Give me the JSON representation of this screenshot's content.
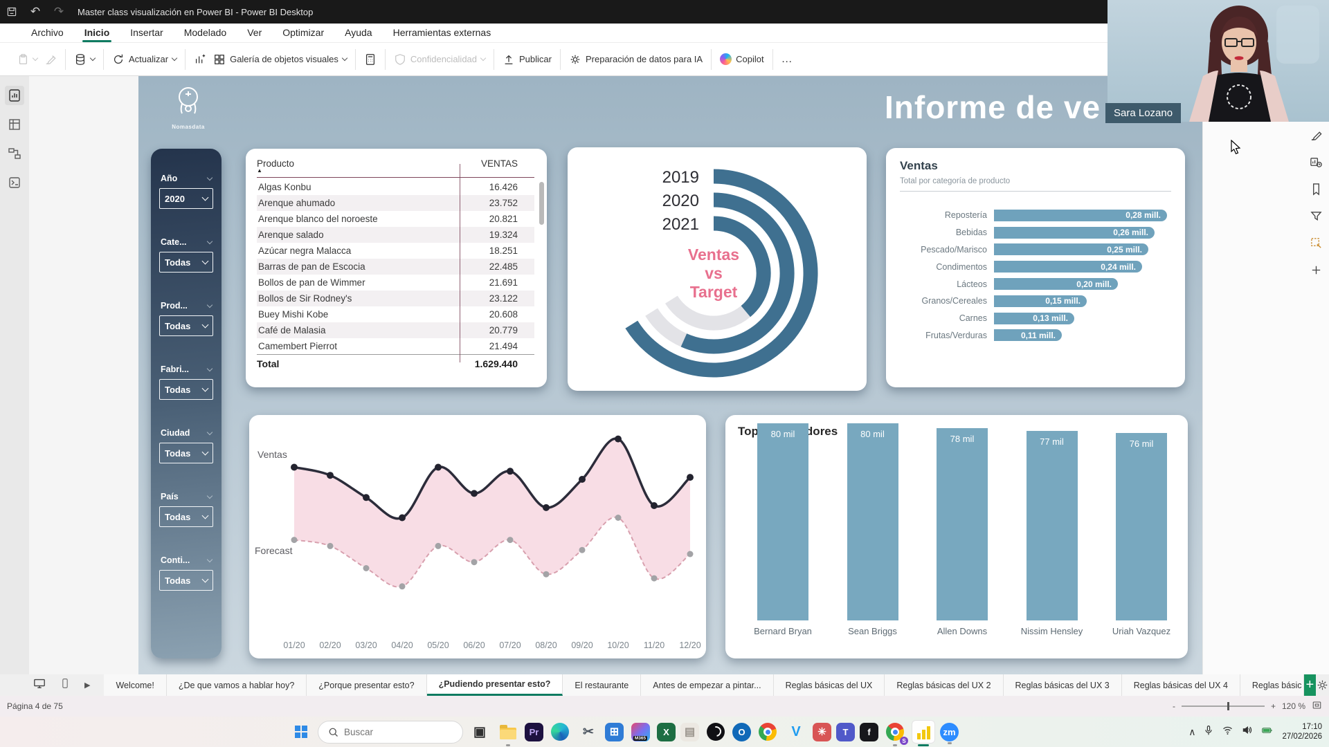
{
  "window": {
    "title": "Master class visualización en Power BI - Power BI Desktop",
    "titlebar_buttons": [
      {
        "name": "save"
      },
      {
        "name": "undo"
      },
      {
        "name": "redo",
        "disabled": true
      }
    ]
  },
  "menu": {
    "items": [
      {
        "label": "Archivo"
      },
      {
        "label": "Inicio",
        "active": true
      },
      {
        "label": "Insertar"
      },
      {
        "label": "Modelado"
      },
      {
        "label": "Ver"
      },
      {
        "label": "Optimizar"
      },
      {
        "label": "Ayuda"
      },
      {
        "label": "Herramientas externas"
      }
    ]
  },
  "toolbar": {
    "groups": [
      {
        "items": [
          {
            "icon": "clipboard",
            "chevron": true,
            "disabled": true
          },
          {
            "icon": "format-painter",
            "disabled": true
          }
        ]
      },
      {
        "items": [
          {
            "icon": "database",
            "chevron": true
          }
        ]
      },
      {
        "items": [
          {
            "icon": "refresh",
            "label": "Actualizar",
            "chevron": true
          }
        ]
      },
      {
        "items": [
          {
            "icon": "new-visual"
          },
          {
            "icon": "visual-gallery",
            "label": "Galería de objetos visuales",
            "chevron": true
          }
        ]
      },
      {
        "items": [
          {
            "icon": "calculator"
          }
        ]
      },
      {
        "items": [
          {
            "icon": "sensitivity",
            "label": "Confidencialidad",
            "chevron": true,
            "disabled": true
          }
        ]
      },
      {
        "items": [
          {
            "icon": "publish",
            "label": "Publicar"
          }
        ]
      },
      {
        "items": [
          {
            "icon": "data-prep",
            "label": "Preparación de datos para IA"
          }
        ]
      },
      {
        "items": [
          {
            "icon": "copilot",
            "label": "Copilot"
          }
        ]
      },
      {
        "items": [
          {
            "icon": "more",
            "label": "…"
          }
        ]
      }
    ]
  },
  "left_rail": {
    "items": [
      {
        "name": "report-view",
        "active": true
      },
      {
        "name": "data-view"
      },
      {
        "name": "model-view"
      },
      {
        "name": "dax-query-view"
      }
    ]
  },
  "right_rail": {
    "items": [
      {
        "name": "format-visual"
      },
      {
        "name": "performance-analyzer"
      },
      {
        "name": "bookmarks"
      },
      {
        "name": "sync-slicers"
      },
      {
        "name": "selection",
        "accent": true
      },
      {
        "name": "add-visual"
      }
    ]
  },
  "report": {
    "logo_text": "Nomasdata",
    "title": "Informe de ve",
    "filters": [
      {
        "label": "Año",
        "value": "2020"
      },
      {
        "label": "Cate...",
        "value": "Todas"
      },
      {
        "label": "Prod...",
        "value": "Todas"
      },
      {
        "label": "Fabri...",
        "value": "Todas"
      },
      {
        "label": "Ciudad",
        "value": "Todas"
      },
      {
        "label": "País",
        "value": "Todas"
      },
      {
        "label": "Conti...",
        "value": "Todas"
      }
    ],
    "table": {
      "columns": [
        "Producto",
        "VENTAS"
      ],
      "rows": [
        [
          "Algas Konbu",
          "16.426"
        ],
        [
          "Arenque ahumado",
          "23.752"
        ],
        [
          "Arenque blanco del noroeste",
          "20.821"
        ],
        [
          "Arenque salado",
          "19.324"
        ],
        [
          "Azúcar negra Malacca",
          "18.251"
        ],
        [
          "Barras de pan de Escocia",
          "22.485"
        ],
        [
          "Bollos de pan de Wimmer",
          "21.691"
        ],
        [
          "Bollos de Sir Rodney's",
          "23.122"
        ],
        [
          "Buey Mishi Kobe",
          "20.608"
        ],
        [
          "Café de Malasia",
          "20.779"
        ],
        [
          "Camembert Pierrot",
          "21.494"
        ]
      ],
      "total_label": "Total",
      "total_value": "1.629.440"
    }
  },
  "chart_data": [
    {
      "type": "radial-bar",
      "title": "Ventas vs Target",
      "categories": [
        "2019",
        "2020",
        "2021"
      ],
      "progress_deg": [
        238,
        204,
        140
      ],
      "track_deg": 238,
      "center_label_lines": [
        "Ventas",
        "vs",
        "Target"
      ]
    },
    {
      "type": "bar",
      "orientation": "horizontal",
      "title": "Ventas",
      "subtitle": "Total por categoría de producto",
      "categories": [
        "Repostería",
        "Bebidas",
        "Pescado/Marisco",
        "Condimentos",
        "Lácteos",
        "Granos/Cereales",
        "Carnes",
        "Frutas/Verduras"
      ],
      "values": [
        0.28,
        0.26,
        0.25,
        0.24,
        0.2,
        0.15,
        0.13,
        0.11
      ],
      "labels": [
        "0,28 mill.",
        "0,26 mill.",
        "0,25 mill.",
        "0,24 mill.",
        "0,20 mill.",
        "0,15 mill.",
        "0,13 mill.",
        "0,11 mill."
      ],
      "xlim": [
        0,
        0.28
      ]
    },
    {
      "type": "line",
      "x": [
        "01/20",
        "02/20",
        "03/20",
        "04/20",
        "05/20",
        "06/20",
        "07/20",
        "08/20",
        "09/20",
        "10/20",
        "11/20",
        "12/20"
      ],
      "series": [
        {
          "name": "Ventas",
          "style": "solid",
          "values": [
            81,
            77,
            66,
            56,
            81,
            68,
            79,
            61,
            75,
            95,
            62,
            76
          ]
        },
        {
          "name": "Forecast",
          "style": "dashed",
          "values": [
            45,
            42,
            31,
            22,
            42,
            34,
            45,
            28,
            40,
            56,
            26,
            38
          ]
        }
      ],
      "area_between": true,
      "ylim": [
        0,
        100
      ]
    },
    {
      "type": "bar",
      "orientation": "vertical",
      "title": "Top 5 vendedores",
      "categories": [
        "Bernard Bryan",
        "Sean Briggs",
        "Allen Downs",
        "Nissim Hensley",
        "Uriah Vazquez"
      ],
      "values": [
        80,
        80,
        78,
        77,
        76
      ],
      "labels": [
        "80 mil",
        "80 mil",
        "78 mil",
        "77 mil",
        "76 mil"
      ],
      "ylim": [
        0,
        85
      ]
    }
  ],
  "pages_bar": {
    "view_icons": [
      "desktop-view",
      "mobile-view"
    ],
    "next_page_glyph": "▶",
    "tabs": [
      {
        "label": "Welcome!"
      },
      {
        "label": "¿De que vamos a hablar hoy?"
      },
      {
        "label": "¿Porque presentar esto?"
      },
      {
        "label": "¿Pudiendo presentar esto?",
        "active": true
      },
      {
        "label": "El restaurante"
      },
      {
        "label": "Antes de empezar a pintar..."
      },
      {
        "label": "Reglas básicas del UX"
      },
      {
        "label": "Reglas básicas del UX 2"
      },
      {
        "label": "Reglas básicas del UX 3"
      },
      {
        "label": "Reglas básicas del UX 4"
      },
      {
        "label": "Reglas básic",
        "clipped": true
      }
    ],
    "add_label": "+"
  },
  "status_bar": {
    "page_indicator": "Página 4 de 75",
    "zoom_level": "120 %",
    "zoom_minus": "-",
    "zoom_plus": "+"
  },
  "webcam": {
    "name_label": "Sara Lozano"
  },
  "taskbar": {
    "search_placeholder": "Buscar",
    "icons": [
      {
        "name": "start"
      },
      {
        "name": "search"
      },
      {
        "name": "task-view",
        "text": "▣",
        "fg": "#2f2f2f",
        "bg": "transparent",
        "fs": 19
      },
      {
        "name": "file-explorer",
        "open": true
      },
      {
        "name": "premiere",
        "text": "Pr",
        "bg": "#1d1140",
        "fg": "#bda6f2"
      },
      {
        "name": "edge"
      },
      {
        "name": "snipping-tool",
        "text": "✂",
        "bg": "transparent",
        "fg": "#4c5560",
        "fs": 19
      },
      {
        "name": "microsoft-store",
        "text": "⊞",
        "bg": "#2f7cd6",
        "fg": "#ffffff",
        "fs": 16
      },
      {
        "name": "m365-copilot",
        "badge": "M365"
      },
      {
        "name": "excel",
        "text": "X",
        "bg": "#1d6e43",
        "fg": "#ffffff"
      },
      {
        "name": "notes",
        "text": "▤",
        "bg": "#ece8e2",
        "fg": "#9a948c",
        "fs": 16
      },
      {
        "name": "obs"
      },
      {
        "name": "outlook",
        "text": "O",
        "bg": "#1069b8",
        "fg": "#ffffff",
        "circle": true
      },
      {
        "name": "chrome"
      },
      {
        "name": "vscode",
        "text": "V",
        "bg": "transparent",
        "fg": "#1f9cf0",
        "fs": 20
      },
      {
        "name": "photos-app",
        "text": "✳",
        "bg": "#d85555",
        "fg": "#ffffff",
        "fs": 15
      },
      {
        "name": "teams",
        "text": "T",
        "bg": "#5059c9",
        "fg": "#ffffff"
      },
      {
        "name": "figma",
        "text": "f",
        "bg": "#17171b",
        "fg": "#ffffff"
      },
      {
        "name": "chrome-profile",
        "badge": "S",
        "open": true
      },
      {
        "name": "power-bi",
        "active": true
      },
      {
        "name": "zoom",
        "text": "zm",
        "bg": "#2d8cff",
        "fg": "#ffffff",
        "circle": true,
        "open": true
      }
    ],
    "tray_icons": [
      "hidden-icons",
      "microphone",
      "wifi",
      "volume",
      "battery"
    ],
    "tray_time": "17:10",
    "tray_date": "27/02/2026"
  },
  "colors": {
    "menu_accent_green": "#0f7b61",
    "donut_teal": "#3f7090",
    "donut_track": "#e3e3e7",
    "bar_teal": "#6fa2bc",
    "top5_teal": "#78a8bf",
    "pink_accent": "#e8708e",
    "area_pink": "#f7d9e2",
    "ventas_line": "#2c2c3a",
    "forecast_line": "#d8a0ae",
    "table_grid_maroon": "#7d4459",
    "tab_add_green": "#17935f",
    "powerbi_yellow": "#f2c80f"
  }
}
